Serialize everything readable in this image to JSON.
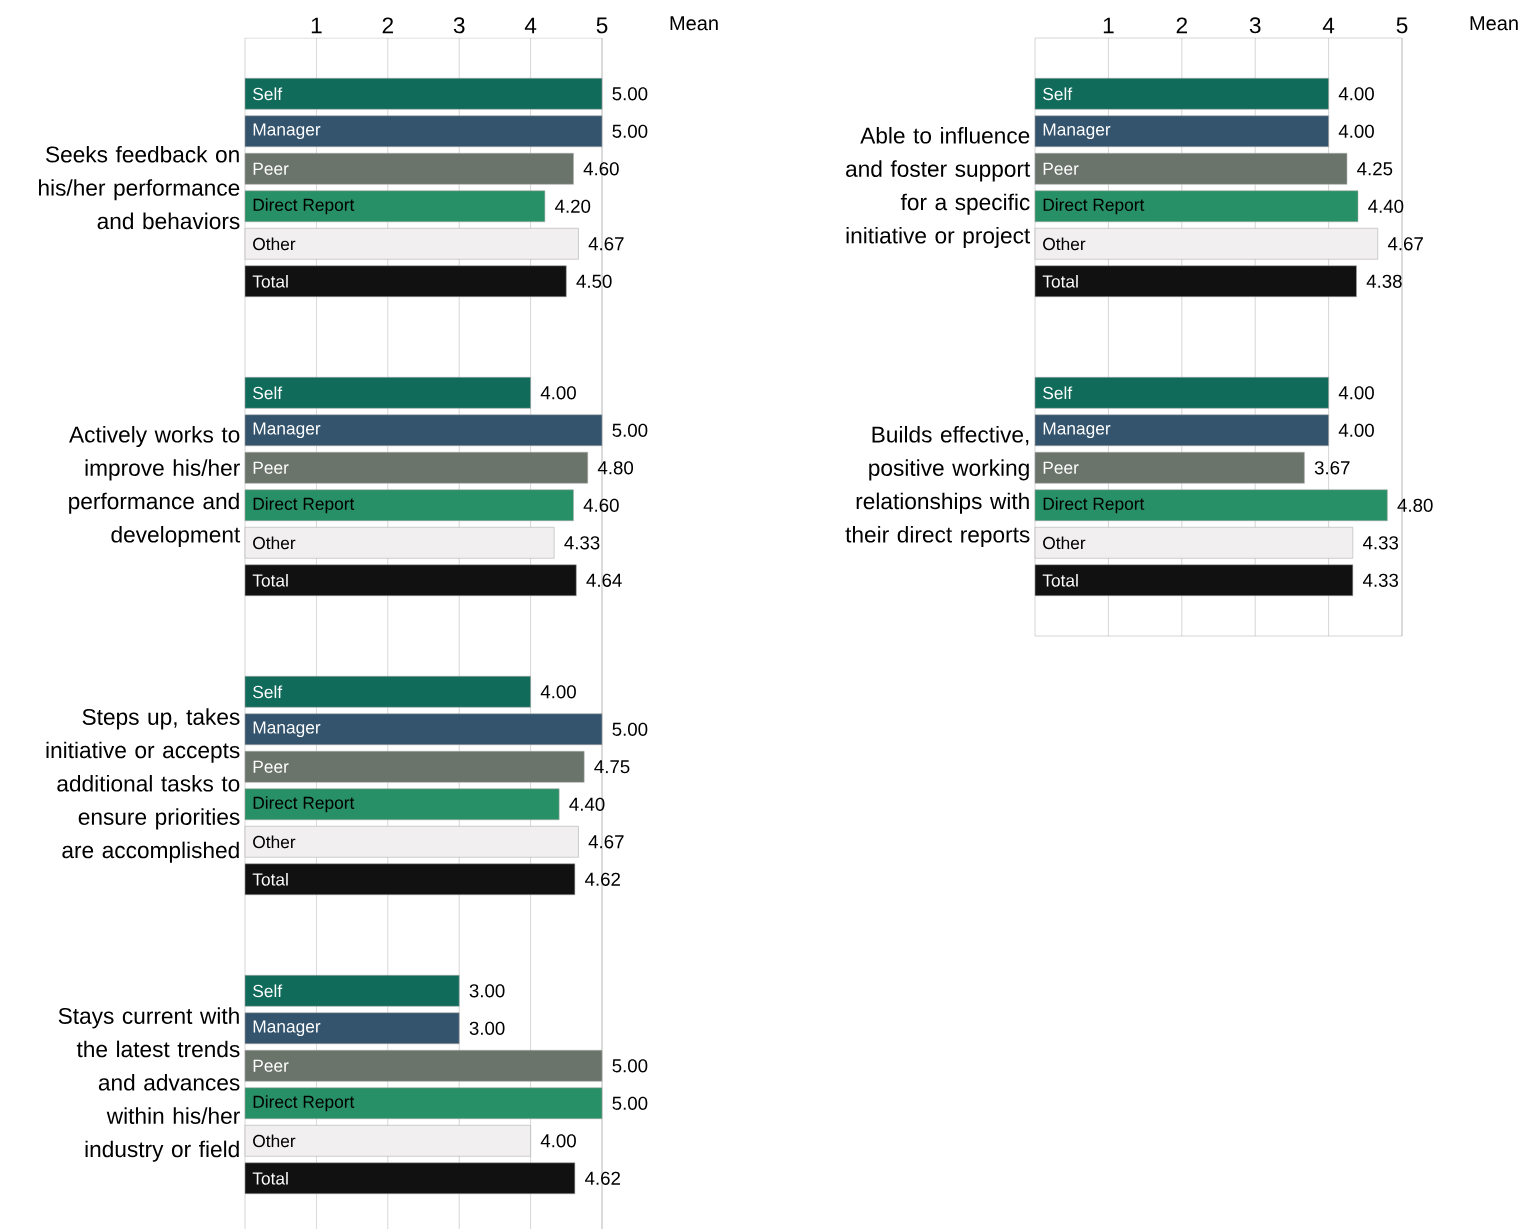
{
  "chart_data": [
    {
      "type": "bar",
      "orientation": "horizontal",
      "categories": [
        "Seeks feedback on his/her performance and behaviors",
        "Actively works to improve his/her performance and development",
        "Steps up, takes initiative or accepts additional tasks to ensure priorities are accomplished",
        "Stays current with the latest trends and advances within his/her industry or field"
      ],
      "xlim": [
        0,
        5
      ],
      "xticks": [
        1,
        2,
        3,
        4,
        5
      ],
      "grid": "x",
      "annotations": [
        "Mean"
      ],
      "series": [
        {
          "name": "Self",
          "color": "#116b5b",
          "values": [
            5,
            4,
            4,
            3
          ],
          "value_labels": [
            "5.00",
            "4.00",
            "4.00",
            "3.00"
          ]
        },
        {
          "name": "Manager",
          "color": "#34546e",
          "values": [
            5,
            5,
            5,
            3
          ],
          "value_labels": [
            "5.00",
            "5.00",
            "5.00",
            "3.00"
          ]
        },
        {
          "name": "Peer",
          "color": "#6b746b",
          "values": [
            4.6,
            4.8,
            4.75,
            5
          ],
          "value_labels": [
            "4.60",
            "4.80",
            "4.75",
            "5.00"
          ]
        },
        {
          "name": "Direct Report",
          "color": "#279066",
          "values": [
            4.2,
            4.6,
            4.4,
            5
          ],
          "value_labels": [
            "4.20",
            "4.60",
            "4.40",
            "5.00"
          ]
        },
        {
          "name": "Other",
          "color": "#f2eff0",
          "values": [
            4.67,
            4.33,
            4.67,
            4
          ],
          "value_labels": [
            "4.67",
            "4.33",
            "4.67",
            "4.00"
          ]
        },
        {
          "name": "Total",
          "color": "#111111",
          "values": [
            4.5,
            4.64,
            4.62,
            4.62
          ],
          "value_labels": [
            "4.50",
            "4.64",
            "4.62",
            "4.62"
          ]
        }
      ]
    },
    {
      "type": "bar",
      "orientation": "horizontal",
      "categories": [
        "Able to influence and foster support for a specific initiative or project",
        "Builds effective, positive working relationships with their direct reports"
      ],
      "xlim": [
        0,
        5
      ],
      "xticks": [
        1,
        2,
        3,
        4,
        5
      ],
      "grid": "x",
      "annotations": [
        "Mean"
      ],
      "series": [
        {
          "name": "Self",
          "color": "#116b5b",
          "values": [
            4,
            4
          ],
          "value_labels": [
            "4.00",
            "4.00"
          ]
        },
        {
          "name": "Manager",
          "color": "#34546e",
          "values": [
            4,
            4
          ],
          "value_labels": [
            "4.00",
            "4.00"
          ]
        },
        {
          "name": "Peer",
          "color": "#6b746b",
          "values": [
            4.25,
            3.67
          ],
          "value_labels": [
            "4.25",
            "3.67"
          ]
        },
        {
          "name": "Direct Report",
          "color": "#279066",
          "values": [
            4.4,
            4.8
          ],
          "value_labels": [
            "4.40",
            "4.80"
          ]
        },
        {
          "name": "Other",
          "color": "#f2eff0",
          "values": [
            4.67,
            4.33
          ],
          "value_labels": [
            "4.67",
            "4.33"
          ]
        },
        {
          "name": "Total",
          "color": "#111111",
          "values": [
            4.38,
            4.33
          ],
          "value_labels": [
            "4.38",
            "4.33"
          ]
        }
      ]
    }
  ]
}
